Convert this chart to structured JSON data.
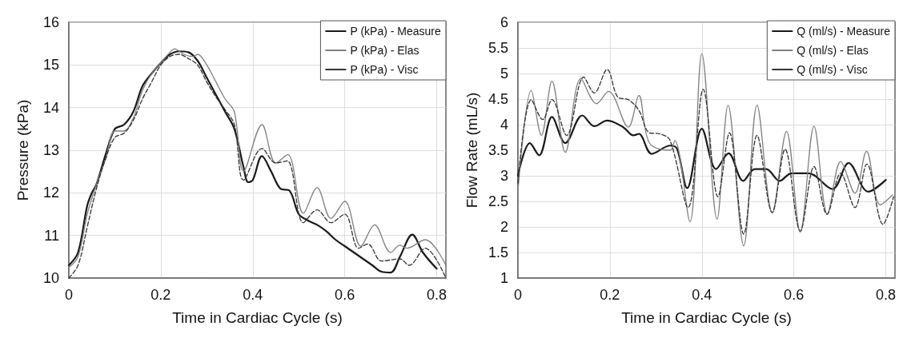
{
  "chart_data": [
    {
      "type": "line",
      "xlabel": "Time in Cardiac Cycle (s)",
      "ylabel": "Pressure (kPa)",
      "xlim": [
        0,
        0.82
      ],
      "xticks": [
        0,
        0.2,
        0.4,
        0.6,
        0.8
      ],
      "ylim": [
        10,
        16
      ],
      "yticks": [
        10,
        11,
        12,
        13,
        14,
        15,
        16
      ],
      "grid": true,
      "legend": "top right",
      "marker": "none",
      "series": [
        {
          "name": "P (kPa) - Measure",
          "color": "#1a1a1a",
          "line_style": "solid",
          "x": [
            0,
            0.02,
            0.04,
            0.05,
            0.06,
            0.08,
            0.1,
            0.12,
            0.14,
            0.16,
            0.18,
            0.2,
            0.22,
            0.24,
            0.26,
            0.28,
            0.3,
            0.32,
            0.34,
            0.36,
            0.38,
            0.39,
            0.4,
            0.42,
            0.44,
            0.46,
            0.48,
            0.5,
            0.52,
            0.54,
            0.56,
            0.58,
            0.6,
            0.62,
            0.64,
            0.66,
            0.68,
            0.7,
            0.72,
            0.747,
            0.77,
            0.8
          ],
          "values": [
            10.3,
            10.6,
            11.7,
            12.0,
            12.2,
            12.9,
            13.5,
            13.6,
            13.9,
            14.5,
            14.8,
            15.05,
            15.25,
            15.32,
            15.3,
            15.1,
            14.7,
            14.3,
            13.9,
            13.5,
            12.6,
            12.25,
            12.3,
            12.86,
            12.5,
            12.1,
            12.05,
            11.5,
            11.35,
            11.25,
            11.1,
            10.9,
            10.75,
            10.6,
            10.45,
            10.3,
            10.15,
            10.13,
            10.5,
            11.02,
            10.6,
            10.22
          ]
        },
        {
          "name": "P (kPa) - Elas",
          "color": "#808080",
          "line_style": "solid",
          "x": [
            0,
            0.02,
            0.04,
            0.06,
            0.08,
            0.1,
            0.12,
            0.14,
            0.16,
            0.18,
            0.2,
            0.22,
            0.23,
            0.25,
            0.27,
            0.28,
            0.3,
            0.32,
            0.34,
            0.36,
            0.38,
            0.42,
            0.45,
            0.476,
            0.51,
            0.54,
            0.57,
            0.6,
            0.635,
            0.665,
            0.7,
            0.72,
            0.735,
            0.775,
            0.82
          ],
          "values": [
            10.25,
            10.5,
            11.5,
            12.2,
            12.8,
            13.45,
            13.45,
            13.75,
            14.4,
            14.8,
            15.05,
            15.3,
            15.38,
            15.25,
            15.2,
            15.25,
            15.0,
            14.6,
            14.2,
            13.9,
            12.51,
            13.6,
            12.7,
            12.9,
            11.52,
            12.12,
            11.4,
            11.8,
            10.75,
            11.25,
            10.6,
            10.77,
            10.7,
            10.9,
            10.3
          ]
        },
        {
          "name": "P (kPa) - Visc",
          "color": "#333333",
          "line_style": "dashed",
          "x": [
            0,
            0.02,
            0.04,
            0.06,
            0.08,
            0.1,
            0.12,
            0.14,
            0.16,
            0.18,
            0.2,
            0.22,
            0.24,
            0.26,
            0.28,
            0.3,
            0.32,
            0.34,
            0.36,
            0.38,
            0.42,
            0.45,
            0.475,
            0.51,
            0.54,
            0.57,
            0.6,
            0.63,
            0.65,
            0.68,
            0.72,
            0.74,
            0.775,
            0.82
          ],
          "values": [
            10.0,
            10.3,
            11.2,
            12.1,
            12.8,
            13.3,
            13.4,
            13.7,
            14.2,
            14.6,
            15.0,
            15.2,
            15.25,
            15.15,
            15.0,
            14.6,
            14.25,
            13.95,
            13.6,
            12.3,
            13.04,
            12.7,
            12.75,
            11.3,
            11.6,
            11.3,
            11.5,
            10.7,
            10.8,
            10.4,
            10.45,
            10.3,
            10.7,
            10.0
          ]
        }
      ]
    },
    {
      "type": "line",
      "xlabel": "Time in Cardiac Cycle (s)",
      "ylabel": "Flow Rate (mL/s)",
      "xlim": [
        0,
        0.82
      ],
      "xticks": [
        0,
        0.2,
        0.4,
        0.6,
        0.8
      ],
      "ylim": [
        1,
        6
      ],
      "yticks": [
        1,
        1.5,
        2,
        2.5,
        3,
        3.5,
        4,
        4.5,
        5,
        5.5,
        6
      ],
      "grid": true,
      "legend": "top right",
      "marker": "none",
      "series": [
        {
          "name": "Q (ml/s) - Measure",
          "color": "#1a1a1a",
          "line_style": "solid",
          "x": [
            0,
            0.026,
            0.046,
            0.074,
            0.103,
            0.14,
            0.166,
            0.194,
            0.229,
            0.251,
            0.263,
            0.291,
            0.331,
            0.346,
            0.368,
            0.4,
            0.431,
            0.458,
            0.49,
            0.515,
            0.54,
            0.569,
            0.595,
            0.632,
            0.684,
            0.719,
            0.762,
            0.8
          ],
          "values": [
            3.0,
            3.64,
            3.4,
            4.15,
            3.64,
            4.18,
            3.97,
            4.08,
            3.95,
            3.79,
            3.82,
            3.43,
            3.59,
            3.53,
            2.76,
            3.92,
            3.13,
            3.44,
            2.9,
            3.13,
            3.13,
            2.9,
            3.05,
            3.05,
            2.74,
            3.25,
            2.69,
            2.92
          ]
        },
        {
          "name": "Q (ml/s) - Elas",
          "color": "#808080",
          "line_style": "solid",
          "x": [
            0,
            0.029,
            0.051,
            0.074,
            0.103,
            0.137,
            0.171,
            0.197,
            0.24,
            0.263,
            0.286,
            0.331,
            0.341,
            0.374,
            0.4,
            0.433,
            0.457,
            0.491,
            0.52,
            0.553,
            0.584,
            0.614,
            0.644,
            0.673,
            0.702,
            0.733,
            0.758,
            0.788,
            0.815
          ],
          "values": [
            2.7,
            4.67,
            3.79,
            4.85,
            3.46,
            4.9,
            4.41,
            4.65,
            3.95,
            4.57,
            3.64,
            3.5,
            3.69,
            2.1,
            5.39,
            2.15,
            4.38,
            1.63,
            4.38,
            2.28,
            3.87,
            1.9,
            3.97,
            2.25,
            3.28,
            2.66,
            3.48,
            2.43,
            2.63
          ]
        },
        {
          "name": "Q (ml/s) - Visc",
          "color": "#333333",
          "line_style": "dashed",
          "x": [
            0,
            0.029,
            0.054,
            0.074,
            0.106,
            0.143,
            0.166,
            0.194,
            0.217,
            0.24,
            0.263,
            0.286,
            0.309,
            0.331,
            0.37,
            0.403,
            0.435,
            0.46,
            0.491,
            0.52,
            0.553,
            0.581,
            0.614,
            0.644,
            0.672,
            0.702,
            0.733,
            0.759,
            0.794,
            0.817
          ],
          "values": [
            2.85,
            4.49,
            4.1,
            4.49,
            3.79,
            4.93,
            4.62,
            5.08,
            4.54,
            4.49,
            4.28,
            3.84,
            3.82,
            3.69,
            2.38,
            4.69,
            2.59,
            3.84,
            1.86,
            3.79,
            2.28,
            3.52,
            1.92,
            3.18,
            2.25,
            3.05,
            2.38,
            3.23,
            2.05,
            2.59
          ]
        }
      ]
    }
  ]
}
